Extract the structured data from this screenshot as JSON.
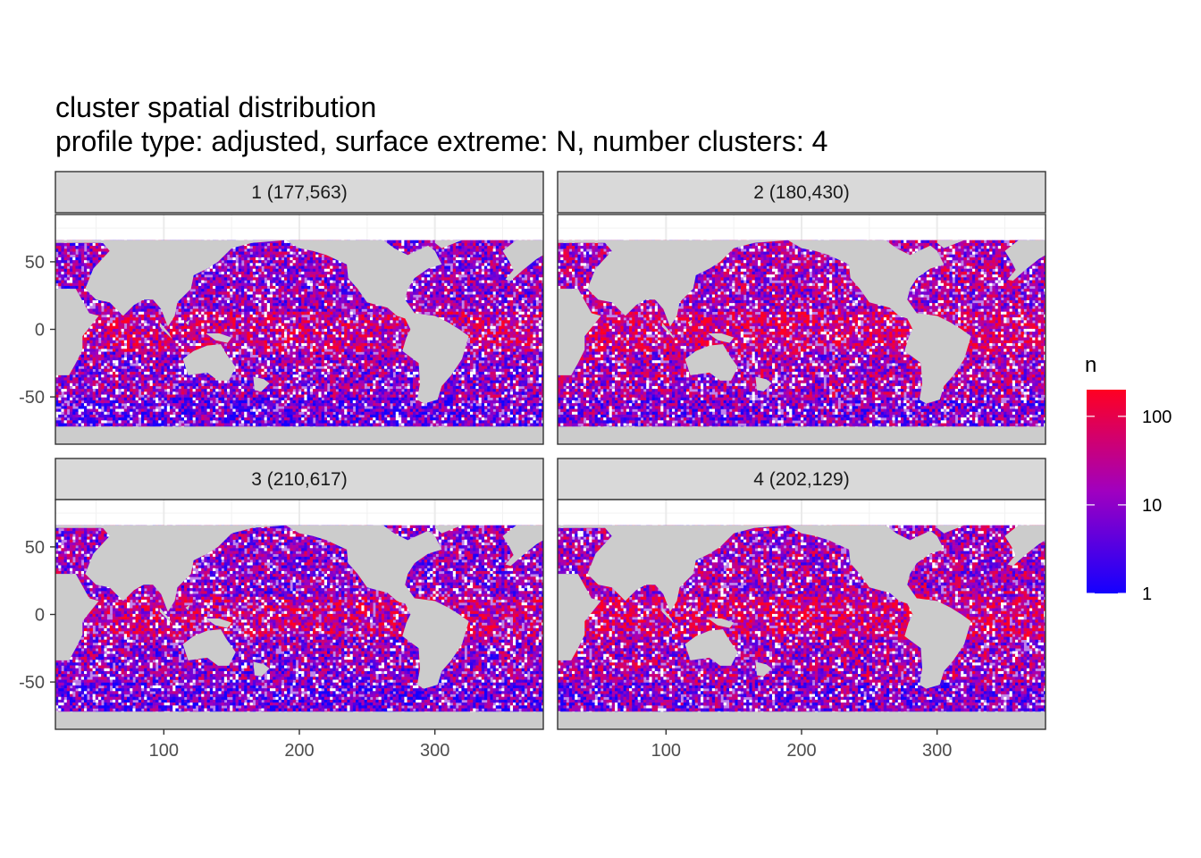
{
  "chart_data": {
    "type": "heatmap",
    "title": "cluster spatial distribution",
    "subtitle": "profile type: adjusted, surface extreme: N, number clusters: 4",
    "xlabel": "",
    "ylabel": "",
    "xlim": [
      20,
      380
    ],
    "ylim": [
      -85,
      85
    ],
    "x_ticks": [
      100,
      200,
      300
    ],
    "y_ticks": [
      -50,
      0,
      50
    ],
    "grid": true,
    "legend": {
      "title": "n",
      "position": "right",
      "scale": "log10",
      "breaks": [
        1,
        10,
        100
      ],
      "range": [
        1,
        200
      ],
      "low_color": "#1400ff",
      "mid_color": "#a000c0",
      "high_color": "#ff0022"
    },
    "land_color": "#cccccc",
    "panels": [
      {
        "label": "1 (177,563)",
        "cluster": 1,
        "count": 177563
      },
      {
        "label": "2 (180,430)",
        "cluster": 2,
        "count": 180430
      },
      {
        "label": "3 (210,617)",
        "cluster": 3,
        "count": 210617
      },
      {
        "label": "4 (202,129)",
        "cluster": 4,
        "count": 202129
      }
    ]
  }
}
